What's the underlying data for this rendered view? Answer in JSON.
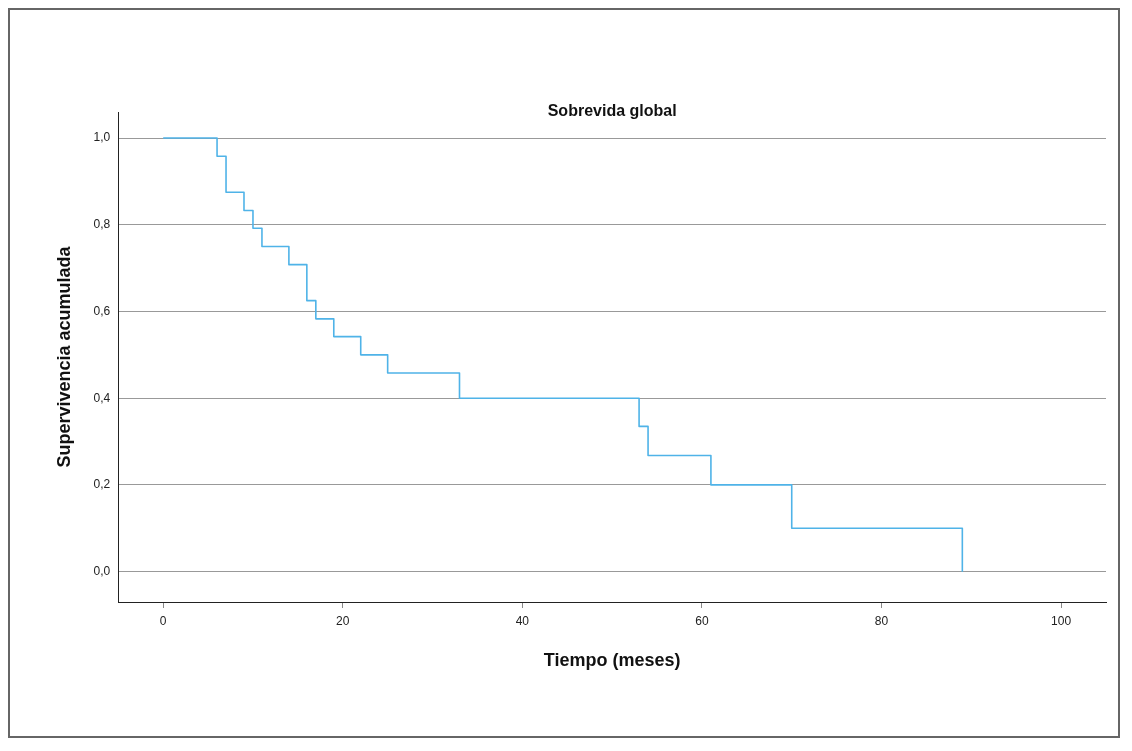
{
  "chart_data": {
    "type": "step",
    "title": "Sobrevida global",
    "xlabel": "Tiempo (meses)",
    "ylabel": "Supervivencia acumulada",
    "x": [
      0,
      6,
      7,
      9,
      10,
      11,
      14,
      16,
      17,
      19,
      22,
      25,
      33,
      53,
      54,
      61,
      70,
      89
    ],
    "series": [
      {
        "color": "#4fb3e8",
        "values": [
          1,
          0.958,
          0.875,
          0.833,
          0.792,
          0.75,
          0.708,
          0.625,
          0.583,
          0.542,
          0.5,
          0.458,
          0.4,
          0.335,
          0.268,
          0.2,
          0.1,
          0
        ]
      }
    ],
    "xlim": [
      -5,
      105
    ],
    "xticks": [
      0,
      20,
      40,
      60,
      80,
      100
    ],
    "ylim": [
      -0.07,
      1.06
    ],
    "yticks": [
      {
        "value": 0,
        "label": "0,0"
      },
      {
        "value": 0.2,
        "label": "0,2"
      },
      {
        "value": 0.4,
        "label": "0,4"
      },
      {
        "value": 0.6,
        "label": "0,6"
      },
      {
        "value": 0.8,
        "label": "0,8"
      },
      {
        "value": 1,
        "label": "1,0"
      }
    ],
    "grid": "y",
    "legend": false,
    "marker": "none",
    "line_style": "solid"
  }
}
